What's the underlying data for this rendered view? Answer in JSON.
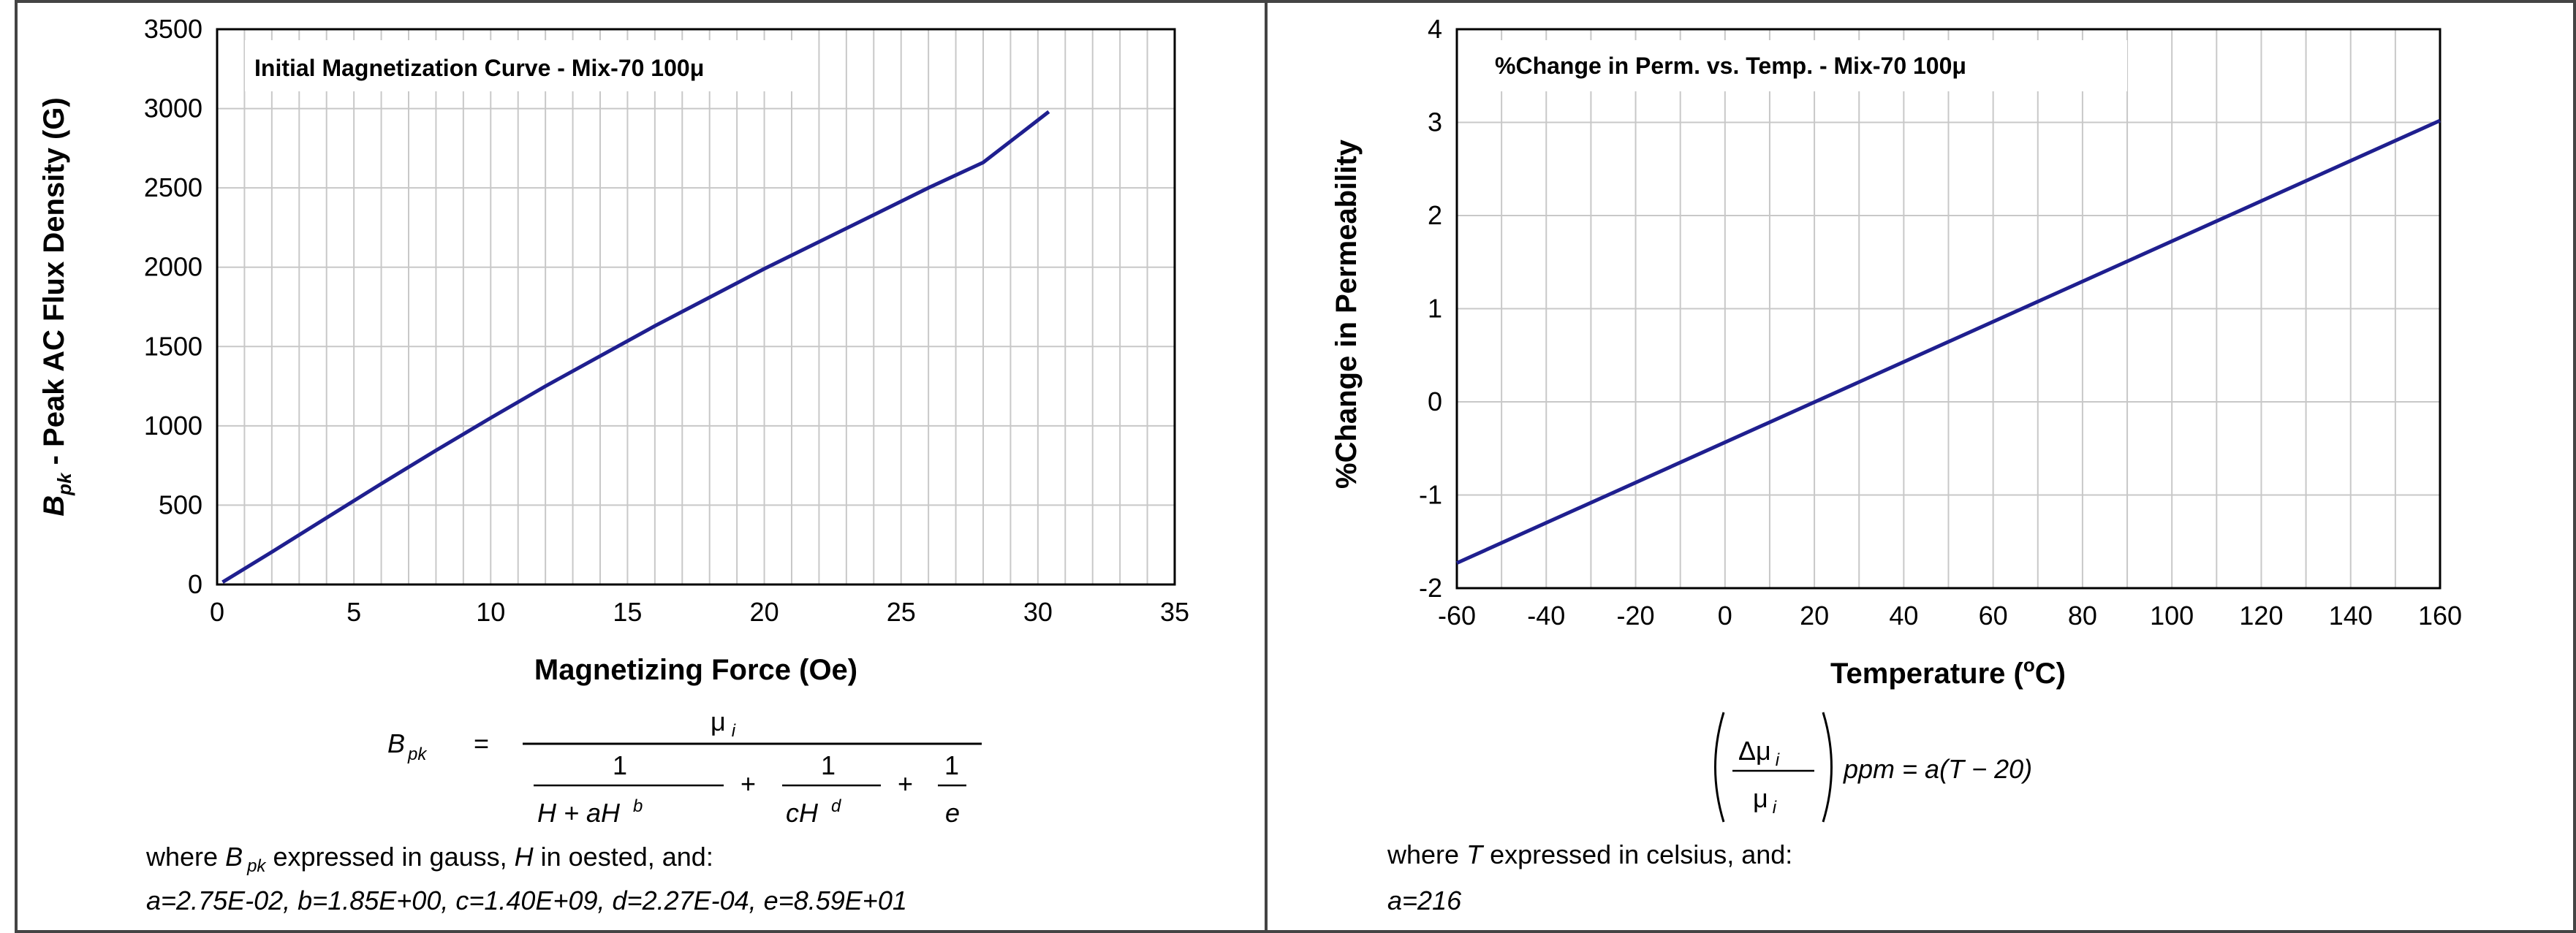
{
  "chart_data": [
    {
      "type": "line",
      "title": "Initial Magnetization Curve - Mix-70  100μ",
      "xlabel": "Magnetizing Force (Oe)",
      "ylabel_symbol": "B",
      "ylabel_subscript": "pk",
      "ylabel_rest": " - Peak AC Flux Density (G)",
      "xlim": [
        0,
        35
      ],
      "ylim": [
        0,
        3500
      ],
      "x_ticks": [
        "0",
        "5",
        "10",
        "15",
        "20",
        "25",
        "30",
        "35"
      ],
      "y_ticks": [
        "0",
        "500",
        "1000",
        "1500",
        "2000",
        "2500",
        "3000",
        "3500"
      ],
      "grid": true,
      "line_color": "#1f1f8f",
      "series": [
        {
          "x": [
            0.2,
            2,
            4,
            6,
            8,
            10,
            12,
            14,
            16,
            18,
            20,
            22,
            24,
            26,
            28,
            30.4
          ],
          "y": [
            15,
            205,
            420,
            635,
            845,
            1050,
            1250,
            1440,
            1630,
            1810,
            1990,
            2160,
            2330,
            2500,
            2660,
            2980
          ]
        }
      ]
    },
    {
      "type": "line",
      "title": "%Change in Perm. vs. Temp. - Mix-70  100μ",
      "xlabel_prefix": "Temperature (",
      "xlabel_degree": "o",
      "xlabel_suffix": "C)",
      "ylabel": "%Change in Permeability",
      "xlim": [
        -60,
        160
      ],
      "ylim": [
        -2,
        4
      ],
      "x_ticks": [
        "-60",
        "-40",
        "-20",
        "0",
        "20",
        "40",
        "60",
        "80",
        "100",
        "120",
        "140",
        "160"
      ],
      "y_ticks": [
        "-2",
        "-1",
        "0",
        "1",
        "2",
        "3",
        "4"
      ],
      "grid": true,
      "line_color": "#1f1f8f",
      "series": [
        {
          "x": [
            -60,
            160
          ],
          "y": [
            -1.73,
            3.02
          ]
        }
      ]
    }
  ],
  "left_formula": {
    "lhs": "B",
    "lhs_sub": "pk",
    "equals": "=",
    "numerator": "μ",
    "numerator_sub": "i",
    "one_1": "1",
    "one_2": "1",
    "one_3": "1",
    "den1": "H  +  aH",
    "den1_sup": "b",
    "plus_1": "+",
    "den2": "cH",
    "den2_sup": "d",
    "plus_2": "+",
    "den3": "e",
    "where_1": "where ",
    "where_b": "B",
    "where_b_sub": "pk",
    "where_2": " expressed in gauss, ",
    "where_h": "H",
    "where_3": " in oested, and:",
    "constants": "a=2.75E-02,  b=1.85E+00,  c=1.40E+09,  d=2.27E-04,  e=8.59E+01"
  },
  "right_formula": {
    "delta_mu": "Δμ",
    "delta_mu_sub": "i",
    "mu": "μ",
    "mu_sub": "i",
    "rhs": "ppm = a(T − 20)",
    "where_1": "where ",
    "where_t": "T",
    "where_2": " expressed in celsius, and:",
    "constants": "a=216"
  }
}
